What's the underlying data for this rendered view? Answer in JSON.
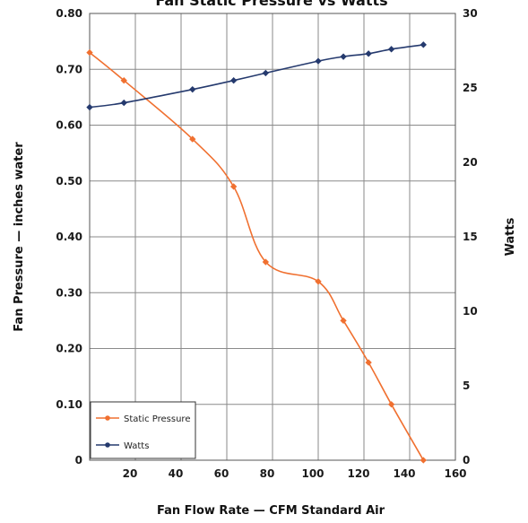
{
  "chart_data": {
    "type": "line",
    "title": "Fan Static Pressure vs Watts",
    "xlabel": "Fan Flow Rate — CFM Standard Air",
    "ylabel": "Fan Pressure — inches water",
    "y2label": "Watts",
    "xlim": [
      0,
      160
    ],
    "ylim": [
      0,
      0.8
    ],
    "y2lim": [
      0,
      30
    ],
    "x_ticks": [
      "20",
      "40",
      "60",
      "80",
      "100",
      "120",
      "140",
      "160"
    ],
    "y_ticks": [
      "0",
      "0.10",
      "0.20",
      "0.30",
      "0.40",
      "0.50",
      "0.60",
      "0.70",
      "0.80"
    ],
    "y2_ticks": [
      "0",
      "5",
      "10",
      "15",
      "20",
      "25",
      "30"
    ],
    "grid": true,
    "legend_position": "bottom-left",
    "series": [
      {
        "name": "Static Pressure",
        "axis": "left",
        "color": "#f07030",
        "x": [
          0,
          15,
          45,
          63,
          77,
          100,
          111,
          122,
          132,
          146
        ],
        "y": [
          0.73,
          0.68,
          0.575,
          0.49,
          0.355,
          0.32,
          0.25,
          0.175,
          0.1,
          0
        ]
      },
      {
        "name": "Watts",
        "axis": "right",
        "color": "#253a6e",
        "x": [
          0,
          15,
          45,
          63,
          77,
          100,
          111,
          122,
          132,
          146
        ],
        "y": [
          23.7,
          24.0,
          24.9,
          25.5,
          26.0,
          26.8,
          27.1,
          27.3,
          27.6,
          27.9
        ]
      }
    ]
  }
}
